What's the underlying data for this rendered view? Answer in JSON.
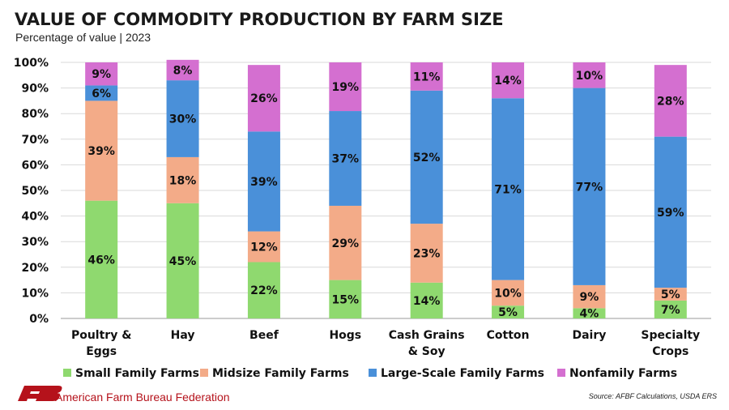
{
  "colors": {
    "small": "#8fd96f",
    "midsize": "#f3ab88",
    "large": "#4a90d9",
    "nonfamily": "#d46fd0",
    "logo": "#b5121b"
  },
  "footer": {
    "org": "American Farm Bureau Federation",
    "source": "Source: AFBF Calculations, USDA ERS"
  },
  "chart_data": {
    "type": "bar",
    "stacked": true,
    "title": "VALUE OF COMMODITY PRODUCTION BY FARM SIZE",
    "subtitle": "Percentage of value | 2023",
    "ylim": [
      0,
      100
    ],
    "yticks": [
      "0%",
      "10%",
      "20%",
      "30%",
      "40%",
      "50%",
      "60%",
      "70%",
      "80%",
      "90%",
      "100%"
    ],
    "grid": true,
    "legend_position": "bottom",
    "categories": [
      [
        "Poultry &",
        "Eggs"
      ],
      [
        "Hay"
      ],
      [
        "Beef"
      ],
      [
        "Hogs"
      ],
      [
        "Cash Grains",
        "& Soy"
      ],
      [
        "Cotton"
      ],
      [
        "Dairy"
      ],
      [
        "Specialty",
        "Crops"
      ]
    ],
    "series": [
      {
        "name": "Small Family Farms",
        "color": "#8fd96f",
        "values": [
          46,
          45,
          22,
          15,
          14,
          5,
          4,
          7
        ]
      },
      {
        "name": "Midsize Family Farms",
        "color": "#f3ab88",
        "values": [
          39,
          18,
          12,
          29,
          23,
          10,
          9,
          5
        ]
      },
      {
        "name": "Large-Scale Family Farms",
        "color": "#4a90d9",
        "values": [
          6,
          30,
          39,
          37,
          52,
          71,
          77,
          59
        ]
      },
      {
        "name": "Nonfamily Farms",
        "color": "#d46fd0",
        "values": [
          9,
          8,
          26,
          19,
          11,
          14,
          10,
          28
        ]
      }
    ]
  }
}
